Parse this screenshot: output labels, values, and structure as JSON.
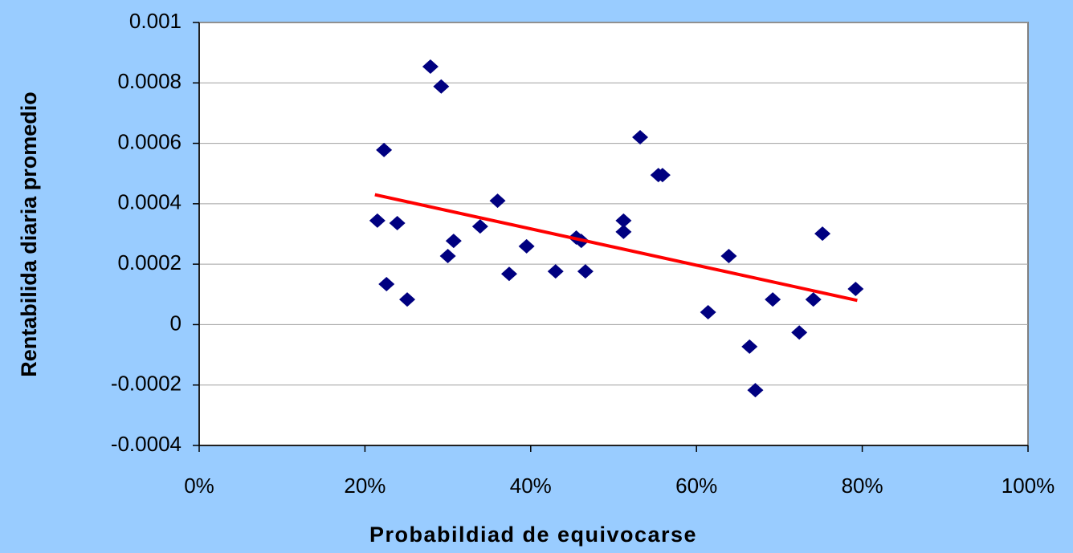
{
  "chart_data": {
    "type": "scatter",
    "xlabel": "Probabildiad de equivocarse",
    "ylabel": "Rentabilida diaria promedio",
    "series": [
      {
        "color": "#000080",
        "x": [
          21.5,
          22.3,
          22.6,
          23.9,
          25.1,
          27.9,
          29.2,
          30.0,
          30.7,
          33.9,
          36.0,
          37.4,
          39.5,
          43.0,
          45.5,
          46.1,
          46.6,
          51.2,
          51.2,
          53.2,
          55.4,
          55.9,
          61.4,
          63.9,
          66.4,
          67.1,
          69.2,
          72.4,
          74.1,
          75.2,
          79.2
        ],
        "values": [
          0.000344,
          0.000578,
          0.000134,
          0.000336,
          8.3e-05,
          0.000854,
          0.000788,
          0.000227,
          0.000277,
          0.000325,
          0.00041,
          0.000168,
          0.000259,
          0.000176,
          0.000288,
          0.000277,
          0.000176,
          0.000344,
          0.000307,
          0.00062,
          0.000495,
          0.000495,
          4.1e-05,
          0.000227,
          -7.3e-05,
          -0.000217,
          8.3e-05,
          -2.6e-05,
          8.3e-05,
          0.000301,
          0.000118
        ]
      }
    ],
    "trendline": {
      "color": "#ff0000",
      "x": [
        21.2,
        79.4
      ],
      "values": [
        0.00043,
        8e-05
      ]
    },
    "xlim": [
      0,
      100
    ],
    "xticks": [
      {
        "value": 0,
        "label": "0%"
      },
      {
        "value": 20,
        "label": "20%"
      },
      {
        "value": 40,
        "label": "40%"
      },
      {
        "value": 60,
        "label": "60%"
      },
      {
        "value": 80,
        "label": "80%"
      },
      {
        "value": 100,
        "label": "100%"
      }
    ],
    "ylim": [
      -0.0004,
      0.001
    ],
    "yticks": [
      -0.0004,
      -0.0002,
      0,
      0.0002,
      0.0004,
      0.0006,
      0.0008,
      0.001
    ],
    "grid": true
  }
}
